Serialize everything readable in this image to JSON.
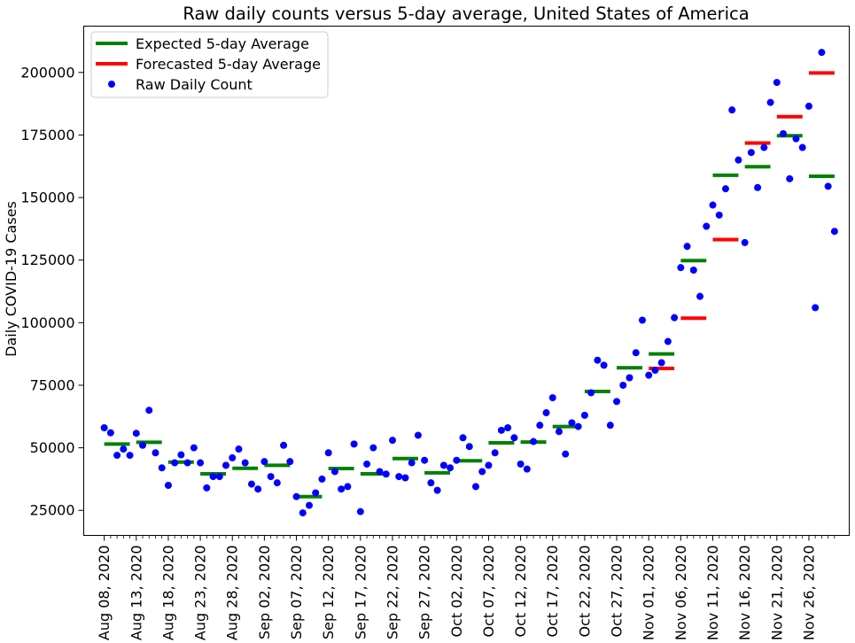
{
  "chart_data": {
    "type": "scatter",
    "title": "Raw daily counts versus 5-day average, United States of America",
    "xlabel": "",
    "ylabel": "Daily COVID-19 Cases",
    "ylim": [
      15000,
      218500
    ],
    "yticks": [
      25000,
      50000,
      75000,
      100000,
      125000,
      150000,
      175000,
      200000
    ],
    "ytick_labels": [
      "25000",
      "50000",
      "75000",
      "100000",
      "125000",
      "150000",
      "175000",
      "200000"
    ],
    "x_dates": [
      "2020-08-08",
      "2020-08-09",
      "2020-08-10",
      "2020-08-11",
      "2020-08-12",
      "2020-08-13",
      "2020-08-14",
      "2020-08-15",
      "2020-08-16",
      "2020-08-17",
      "2020-08-18",
      "2020-08-19",
      "2020-08-20",
      "2020-08-21",
      "2020-08-22",
      "2020-08-23",
      "2020-08-24",
      "2020-08-25",
      "2020-08-26",
      "2020-08-27",
      "2020-08-28",
      "2020-08-29",
      "2020-08-30",
      "2020-08-31",
      "2020-09-01",
      "2020-09-02",
      "2020-09-03",
      "2020-09-04",
      "2020-09-05",
      "2020-09-06",
      "2020-09-07",
      "2020-09-08",
      "2020-09-09",
      "2020-09-10",
      "2020-09-11",
      "2020-09-12",
      "2020-09-13",
      "2020-09-14",
      "2020-09-15",
      "2020-09-16",
      "2020-09-17",
      "2020-09-18",
      "2020-09-19",
      "2020-09-20",
      "2020-09-21",
      "2020-09-22",
      "2020-09-23",
      "2020-09-24",
      "2020-09-25",
      "2020-09-26",
      "2020-09-27",
      "2020-09-28",
      "2020-09-29",
      "2020-09-30",
      "2020-10-01",
      "2020-10-02",
      "2020-10-03",
      "2020-10-04",
      "2020-10-05",
      "2020-10-06",
      "2020-10-07",
      "2020-10-08",
      "2020-10-09",
      "2020-10-10",
      "2020-10-11",
      "2020-10-12",
      "2020-10-13",
      "2020-10-14",
      "2020-10-15",
      "2020-10-16",
      "2020-10-17",
      "2020-10-18",
      "2020-10-19",
      "2020-10-20",
      "2020-10-21",
      "2020-10-22",
      "2020-10-23",
      "2020-10-24",
      "2020-10-25",
      "2020-10-26",
      "2020-10-27",
      "2020-10-28",
      "2020-10-29",
      "2020-10-30",
      "2020-10-31",
      "2020-11-01",
      "2020-11-02",
      "2020-11-03",
      "2020-11-04",
      "2020-11-05",
      "2020-11-06",
      "2020-11-07",
      "2020-11-08",
      "2020-11-09",
      "2020-11-10",
      "2020-11-11",
      "2020-11-12",
      "2020-11-13",
      "2020-11-14",
      "2020-11-15",
      "2020-11-16",
      "2020-11-17",
      "2020-11-18",
      "2020-11-19",
      "2020-11-20",
      "2020-11-21",
      "2020-11-22",
      "2020-11-23",
      "2020-11-24",
      "2020-11-25",
      "2020-11-26",
      "2020-11-27",
      "2020-11-28",
      "2020-11-29",
      "2020-11-30"
    ],
    "x_tick_labels": [
      {
        "date": "2020-08-08",
        "label": "Aug 08, 2020"
      },
      {
        "date": "2020-08-13",
        "label": "Aug 13, 2020"
      },
      {
        "date": "2020-08-18",
        "label": "Aug 18, 2020"
      },
      {
        "date": "2020-08-23",
        "label": "Aug 23, 2020"
      },
      {
        "date": "2020-08-28",
        "label": "Aug 28, 2020"
      },
      {
        "date": "2020-09-02",
        "label": "Sep 02, 2020"
      },
      {
        "date": "2020-09-07",
        "label": "Sep 07, 2020"
      },
      {
        "date": "2020-09-12",
        "label": "Sep 12, 2020"
      },
      {
        "date": "2020-09-17",
        "label": "Sep 17, 2020"
      },
      {
        "date": "2020-09-22",
        "label": "Sep 22, 2020"
      },
      {
        "date": "2020-09-27",
        "label": "Sep 27, 2020"
      },
      {
        "date": "2020-10-02",
        "label": "Oct 02, 2020"
      },
      {
        "date": "2020-10-07",
        "label": "Oct 07, 2020"
      },
      {
        "date": "2020-10-12",
        "label": "Oct 12, 2020"
      },
      {
        "date": "2020-10-17",
        "label": "Oct 17, 2020"
      },
      {
        "date": "2020-10-22",
        "label": "Oct 22, 2020"
      },
      {
        "date": "2020-10-27",
        "label": "Oct 27, 2020"
      },
      {
        "date": "2020-11-01",
        "label": "Nov 01, 2020"
      },
      {
        "date": "2020-11-06",
        "label": "Nov 06, 2020"
      },
      {
        "date": "2020-11-11",
        "label": "Nov 11, 2020"
      },
      {
        "date": "2020-11-16",
        "label": "Nov 16, 2020"
      },
      {
        "date": "2020-11-21",
        "label": "Nov 21, 2020"
      },
      {
        "date": "2020-11-26",
        "label": "Nov 26, 2020"
      }
    ],
    "legend": {
      "placement": "top-left",
      "entries": [
        {
          "label": "Expected 5-day Average",
          "kind": "line",
          "color": "#008000"
        },
        {
          "label": "Forecasted 5-day Average",
          "kind": "line",
          "color": "#ff0000"
        },
        {
          "label": "Raw Daily Count",
          "kind": "dot",
          "color": "#0000ff"
        }
      ]
    },
    "series": [
      {
        "name": "Raw Daily Count",
        "kind": "scatter",
        "color": "#0000ff",
        "values": [
          58000,
          56000,
          47000,
          49500,
          47000,
          55800,
          51000,
          65000,
          48000,
          42000,
          35000,
          44000,
          47200,
          44000,
          50000,
          44000,
          34000,
          38500,
          38500,
          43000,
          46000,
          49500,
          44000,
          35500,
          33500,
          44500,
          38500,
          36000,
          51000,
          44500,
          30500,
          24000,
          27000,
          32000,
          37500,
          48000,
          40500,
          33500,
          34500,
          51500,
          24500,
          43500,
          50000,
          40500,
          39500,
          53000,
          38500,
          38000,
          44000,
          55000,
          45000,
          36000,
          33000,
          43000,
          42000,
          45000,
          54000,
          50500,
          34500,
          40500,
          43000,
          48000,
          57000,
          58000,
          54000,
          43500,
          41500,
          52500,
          59000,
          64000,
          70000,
          56500,
          47500,
          60000,
          58500,
          63000,
          72000,
          85000,
          83000,
          59000,
          68500,
          75000,
          78000,
          88000,
          101000,
          79000,
          81000,
          84000,
          92500,
          102000,
          122000,
          130500,
          121000,
          110500,
          138500,
          147000,
          143000,
          153500,
          185000,
          165000,
          132000,
          168000,
          154000,
          170000,
          188000,
          196000,
          175500,
          157500,
          173500,
          170000,
          186500,
          106000,
          208000,
          154500,
          136500
        ]
      },
      {
        "name": "Expected 5-day Average",
        "kind": "segments",
        "color": "#008000",
        "segments": [
          {
            "start": "2020-08-08",
            "end": "2020-08-12",
            "value": 51500
          },
          {
            "start": "2020-08-13",
            "end": "2020-08-17",
            "value": 52200
          },
          {
            "start": "2020-08-18",
            "end": "2020-08-22",
            "value": 44300
          },
          {
            "start": "2020-08-23",
            "end": "2020-08-27",
            "value": 39600
          },
          {
            "start": "2020-08-28",
            "end": "2020-09-01",
            "value": 41800
          },
          {
            "start": "2020-09-02",
            "end": "2020-09-06",
            "value": 43000
          },
          {
            "start": "2020-09-07",
            "end": "2020-09-11",
            "value": 30500
          },
          {
            "start": "2020-09-12",
            "end": "2020-09-16",
            "value": 41700
          },
          {
            "start": "2020-09-17",
            "end": "2020-09-21",
            "value": 39600
          },
          {
            "start": "2020-09-22",
            "end": "2020-09-26",
            "value": 45700
          },
          {
            "start": "2020-09-27",
            "end": "2020-10-01",
            "value": 40000
          },
          {
            "start": "2020-10-02",
            "end": "2020-10-06",
            "value": 44800
          },
          {
            "start": "2020-10-07",
            "end": "2020-10-11",
            "value": 52000
          },
          {
            "start": "2020-10-12",
            "end": "2020-10-16",
            "value": 52300
          },
          {
            "start": "2020-10-17",
            "end": "2020-10-21",
            "value": 58500
          },
          {
            "start": "2020-10-22",
            "end": "2020-10-26",
            "value": 72500
          },
          {
            "start": "2020-10-27",
            "end": "2020-10-31",
            "value": 82000
          },
          {
            "start": "2020-11-01",
            "end": "2020-11-05",
            "value": 87500
          },
          {
            "start": "2020-11-06",
            "end": "2020-11-10",
            "value": 124800
          },
          {
            "start": "2020-11-11",
            "end": "2020-11-15",
            "value": 158900
          },
          {
            "start": "2020-11-16",
            "end": "2020-11-20",
            "value": 162300
          },
          {
            "start": "2020-11-21",
            "end": "2020-11-25",
            "value": 174700
          },
          {
            "start": "2020-11-26",
            "end": "2020-11-30",
            "value": 158500
          }
        ]
      },
      {
        "name": "Forecasted 5-day Average",
        "kind": "segments",
        "color": "#ff0000",
        "segments": [
          {
            "start": "2020-11-01",
            "end": "2020-11-05",
            "value": 81700
          },
          {
            "start": "2020-11-06",
            "end": "2020-11-10",
            "value": 101800
          },
          {
            "start": "2020-11-11",
            "end": "2020-11-15",
            "value": 133200
          },
          {
            "start": "2020-11-16",
            "end": "2020-11-20",
            "value": 171800
          },
          {
            "start": "2020-11-21",
            "end": "2020-11-25",
            "value": 182300
          },
          {
            "start": "2020-11-26",
            "end": "2020-11-30",
            "value": 199800
          }
        ]
      }
    ]
  }
}
